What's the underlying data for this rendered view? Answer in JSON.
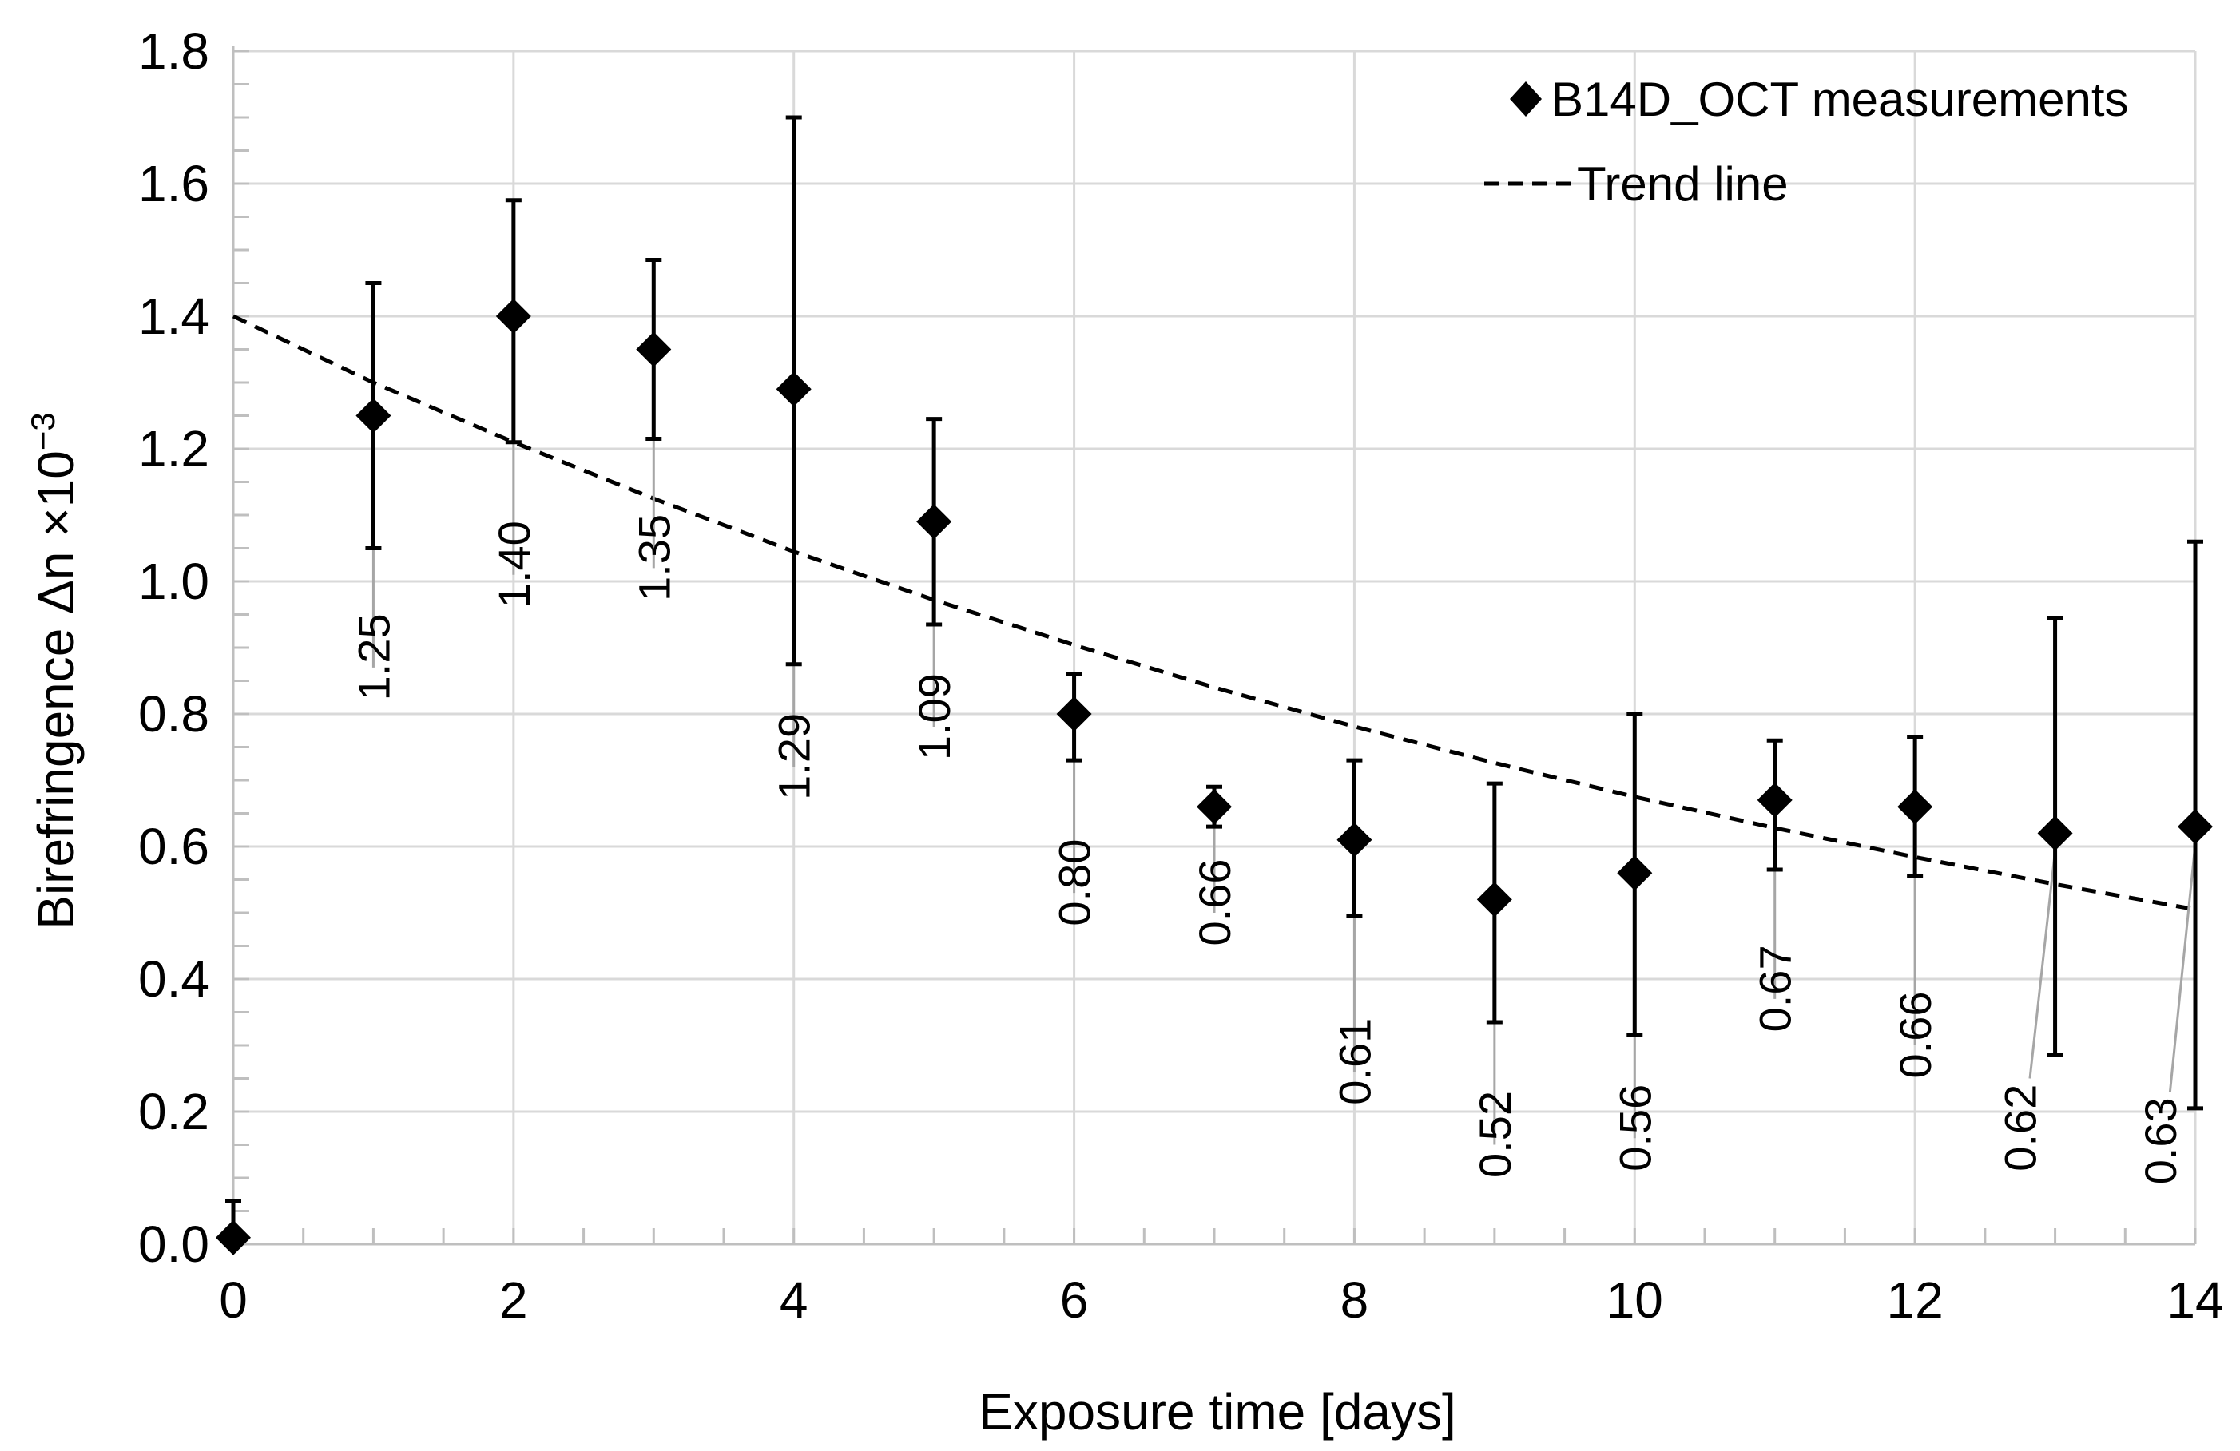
{
  "chart_data": {
    "type": "scatter",
    "title": "",
    "xlabel": "Exposure time [days]",
    "ylabel_main": "Birefringence Δn ×10",
    "ylabel_exp": "−3",
    "xlim": [
      0,
      14
    ],
    "ylim": [
      0,
      1.8
    ],
    "xticks": [
      0,
      2,
      4,
      6,
      8,
      10,
      12,
      14
    ],
    "xtick_labels": [
      "0",
      "2",
      "4",
      "6",
      "8",
      "10",
      "12",
      "14"
    ],
    "yticks": [
      0,
      0.2,
      0.4,
      0.6,
      0.8,
      1.0,
      1.2,
      1.4,
      1.6,
      1.8
    ],
    "ytick_labels": [
      "0.0",
      "0.2",
      "0.4",
      "0.6",
      "0.8",
      "1.0",
      "1.2",
      "1.4",
      "1.6",
      "1.8"
    ],
    "grid": true,
    "legend_position": "top-right",
    "series": [
      {
        "name": "B14D_OCT measurements",
        "kind": "scatter",
        "marker": "diamond",
        "points": [
          {
            "x": 0,
            "y": 0.01,
            "err_low": 0.0,
            "err_high": 0.065,
            "label": ""
          },
          {
            "x": 1,
            "y": 1.25,
            "err_low": 1.05,
            "err_high": 1.45,
            "label": "1.25"
          },
          {
            "x": 2,
            "y": 1.4,
            "err_low": 1.21,
            "err_high": 1.575,
            "label": "1.40"
          },
          {
            "x": 3,
            "y": 1.35,
            "err_low": 1.215,
            "err_high": 1.485,
            "label": "1.35"
          },
          {
            "x": 4,
            "y": 1.29,
            "err_low": 0.875,
            "err_high": 1.7,
            "label": "1.29"
          },
          {
            "x": 5,
            "y": 1.09,
            "err_low": 0.935,
            "err_high": 1.245,
            "label": "1.09"
          },
          {
            "x": 6,
            "y": 0.8,
            "err_low": 0.73,
            "err_high": 0.86,
            "label": "0.80"
          },
          {
            "x": 7,
            "y": 0.66,
            "err_low": 0.63,
            "err_high": 0.69,
            "label": "0.66"
          },
          {
            "x": 8,
            "y": 0.61,
            "err_low": 0.495,
            "err_high": 0.73,
            "label": "0.61"
          },
          {
            "x": 9,
            "y": 0.52,
            "err_low": 0.335,
            "err_high": 0.695,
            "label": "0.52"
          },
          {
            "x": 10,
            "y": 0.56,
            "err_low": 0.315,
            "err_high": 0.8,
            "label": "0.56"
          },
          {
            "x": 11,
            "y": 0.67,
            "err_low": 0.565,
            "err_high": 0.76,
            "label": "0.67"
          },
          {
            "x": 12,
            "y": 0.66,
            "err_low": 0.555,
            "err_high": 0.765,
            "label": "0.66"
          },
          {
            "x": 13,
            "y": 0.62,
            "err_low": 0.285,
            "err_high": 0.945,
            "label": "0.62"
          },
          {
            "x": 14,
            "y": 0.63,
            "err_low": 0.205,
            "err_high": 1.06,
            "label": "0.63"
          }
        ]
      },
      {
        "name": "Trend line",
        "kind": "line",
        "style": "dashed",
        "x": [
          0,
          1,
          2,
          3,
          4,
          5,
          6,
          7,
          8,
          9,
          10,
          11,
          12,
          13,
          14
        ],
        "y": [
          1.4,
          1.3,
          1.21,
          1.125,
          1.045,
          0.972,
          0.904,
          0.84,
          0.781,
          0.726,
          0.675,
          0.628,
          0.584,
          0.543,
          0.505
        ]
      }
    ]
  }
}
